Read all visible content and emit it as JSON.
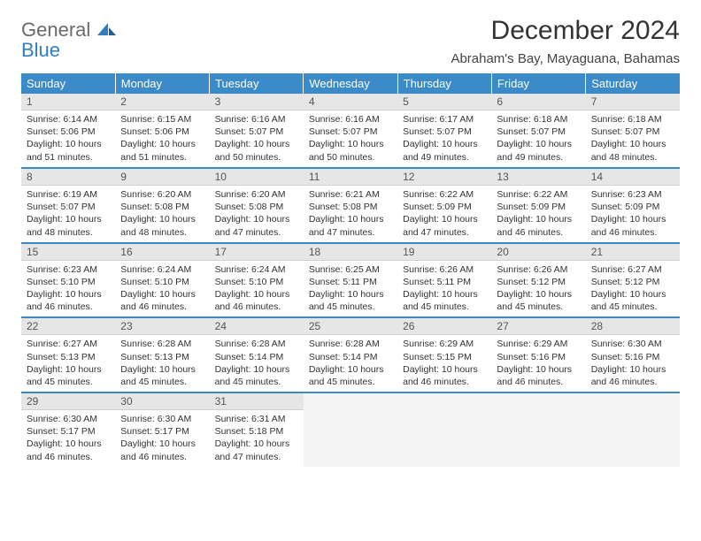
{
  "brand": {
    "line1": "General",
    "line2": "Blue"
  },
  "title": "December 2024",
  "location": "Abraham's Bay, Mayaguana, Bahamas",
  "colors": {
    "header_bg": "#3b8bc8",
    "header_text": "#ffffff",
    "daynum_bg": "#e6e6e6",
    "week_divider": "#3b8bc8",
    "logo_gray": "#6a6a6a",
    "logo_blue": "#2f7fbf",
    "body_text": "#333333"
  },
  "weekdays": [
    "Sunday",
    "Monday",
    "Tuesday",
    "Wednesday",
    "Thursday",
    "Friday",
    "Saturday"
  ],
  "weeks": [
    [
      {
        "n": "1",
        "sr": "Sunrise: 6:14 AM",
        "ss": "Sunset: 5:06 PM",
        "d1": "Daylight: 10 hours",
        "d2": "and 51 minutes."
      },
      {
        "n": "2",
        "sr": "Sunrise: 6:15 AM",
        "ss": "Sunset: 5:06 PM",
        "d1": "Daylight: 10 hours",
        "d2": "and 51 minutes."
      },
      {
        "n": "3",
        "sr": "Sunrise: 6:16 AM",
        "ss": "Sunset: 5:07 PM",
        "d1": "Daylight: 10 hours",
        "d2": "and 50 minutes."
      },
      {
        "n": "4",
        "sr": "Sunrise: 6:16 AM",
        "ss": "Sunset: 5:07 PM",
        "d1": "Daylight: 10 hours",
        "d2": "and 50 minutes."
      },
      {
        "n": "5",
        "sr": "Sunrise: 6:17 AM",
        "ss": "Sunset: 5:07 PM",
        "d1": "Daylight: 10 hours",
        "d2": "and 49 minutes."
      },
      {
        "n": "6",
        "sr": "Sunrise: 6:18 AM",
        "ss": "Sunset: 5:07 PM",
        "d1": "Daylight: 10 hours",
        "d2": "and 49 minutes."
      },
      {
        "n": "7",
        "sr": "Sunrise: 6:18 AM",
        "ss": "Sunset: 5:07 PM",
        "d1": "Daylight: 10 hours",
        "d2": "and 48 minutes."
      }
    ],
    [
      {
        "n": "8",
        "sr": "Sunrise: 6:19 AM",
        "ss": "Sunset: 5:07 PM",
        "d1": "Daylight: 10 hours",
        "d2": "and 48 minutes."
      },
      {
        "n": "9",
        "sr": "Sunrise: 6:20 AM",
        "ss": "Sunset: 5:08 PM",
        "d1": "Daylight: 10 hours",
        "d2": "and 48 minutes."
      },
      {
        "n": "10",
        "sr": "Sunrise: 6:20 AM",
        "ss": "Sunset: 5:08 PM",
        "d1": "Daylight: 10 hours",
        "d2": "and 47 minutes."
      },
      {
        "n": "11",
        "sr": "Sunrise: 6:21 AM",
        "ss": "Sunset: 5:08 PM",
        "d1": "Daylight: 10 hours",
        "d2": "and 47 minutes."
      },
      {
        "n": "12",
        "sr": "Sunrise: 6:22 AM",
        "ss": "Sunset: 5:09 PM",
        "d1": "Daylight: 10 hours",
        "d2": "and 47 minutes."
      },
      {
        "n": "13",
        "sr": "Sunrise: 6:22 AM",
        "ss": "Sunset: 5:09 PM",
        "d1": "Daylight: 10 hours",
        "d2": "and 46 minutes."
      },
      {
        "n": "14",
        "sr": "Sunrise: 6:23 AM",
        "ss": "Sunset: 5:09 PM",
        "d1": "Daylight: 10 hours",
        "d2": "and 46 minutes."
      }
    ],
    [
      {
        "n": "15",
        "sr": "Sunrise: 6:23 AM",
        "ss": "Sunset: 5:10 PM",
        "d1": "Daylight: 10 hours",
        "d2": "and 46 minutes."
      },
      {
        "n": "16",
        "sr": "Sunrise: 6:24 AM",
        "ss": "Sunset: 5:10 PM",
        "d1": "Daylight: 10 hours",
        "d2": "and 46 minutes."
      },
      {
        "n": "17",
        "sr": "Sunrise: 6:24 AM",
        "ss": "Sunset: 5:10 PM",
        "d1": "Daylight: 10 hours",
        "d2": "and 46 minutes."
      },
      {
        "n": "18",
        "sr": "Sunrise: 6:25 AM",
        "ss": "Sunset: 5:11 PM",
        "d1": "Daylight: 10 hours",
        "d2": "and 45 minutes."
      },
      {
        "n": "19",
        "sr": "Sunrise: 6:26 AM",
        "ss": "Sunset: 5:11 PM",
        "d1": "Daylight: 10 hours",
        "d2": "and 45 minutes."
      },
      {
        "n": "20",
        "sr": "Sunrise: 6:26 AM",
        "ss": "Sunset: 5:12 PM",
        "d1": "Daylight: 10 hours",
        "d2": "and 45 minutes."
      },
      {
        "n": "21",
        "sr": "Sunrise: 6:27 AM",
        "ss": "Sunset: 5:12 PM",
        "d1": "Daylight: 10 hours",
        "d2": "and 45 minutes."
      }
    ],
    [
      {
        "n": "22",
        "sr": "Sunrise: 6:27 AM",
        "ss": "Sunset: 5:13 PM",
        "d1": "Daylight: 10 hours",
        "d2": "and 45 minutes."
      },
      {
        "n": "23",
        "sr": "Sunrise: 6:28 AM",
        "ss": "Sunset: 5:13 PM",
        "d1": "Daylight: 10 hours",
        "d2": "and 45 minutes."
      },
      {
        "n": "24",
        "sr": "Sunrise: 6:28 AM",
        "ss": "Sunset: 5:14 PM",
        "d1": "Daylight: 10 hours",
        "d2": "and 45 minutes."
      },
      {
        "n": "25",
        "sr": "Sunrise: 6:28 AM",
        "ss": "Sunset: 5:14 PM",
        "d1": "Daylight: 10 hours",
        "d2": "and 45 minutes."
      },
      {
        "n": "26",
        "sr": "Sunrise: 6:29 AM",
        "ss": "Sunset: 5:15 PM",
        "d1": "Daylight: 10 hours",
        "d2": "and 46 minutes."
      },
      {
        "n": "27",
        "sr": "Sunrise: 6:29 AM",
        "ss": "Sunset: 5:16 PM",
        "d1": "Daylight: 10 hours",
        "d2": "and 46 minutes."
      },
      {
        "n": "28",
        "sr": "Sunrise: 6:30 AM",
        "ss": "Sunset: 5:16 PM",
        "d1": "Daylight: 10 hours",
        "d2": "and 46 minutes."
      }
    ],
    [
      {
        "n": "29",
        "sr": "Sunrise: 6:30 AM",
        "ss": "Sunset: 5:17 PM",
        "d1": "Daylight: 10 hours",
        "d2": "and 46 minutes."
      },
      {
        "n": "30",
        "sr": "Sunrise: 6:30 AM",
        "ss": "Sunset: 5:17 PM",
        "d1": "Daylight: 10 hours",
        "d2": "and 46 minutes."
      },
      {
        "n": "31",
        "sr": "Sunrise: 6:31 AM",
        "ss": "Sunset: 5:18 PM",
        "d1": "Daylight: 10 hours",
        "d2": "and 47 minutes."
      },
      {
        "empty": true
      },
      {
        "empty": true
      },
      {
        "empty": true
      },
      {
        "empty": true
      }
    ]
  ]
}
